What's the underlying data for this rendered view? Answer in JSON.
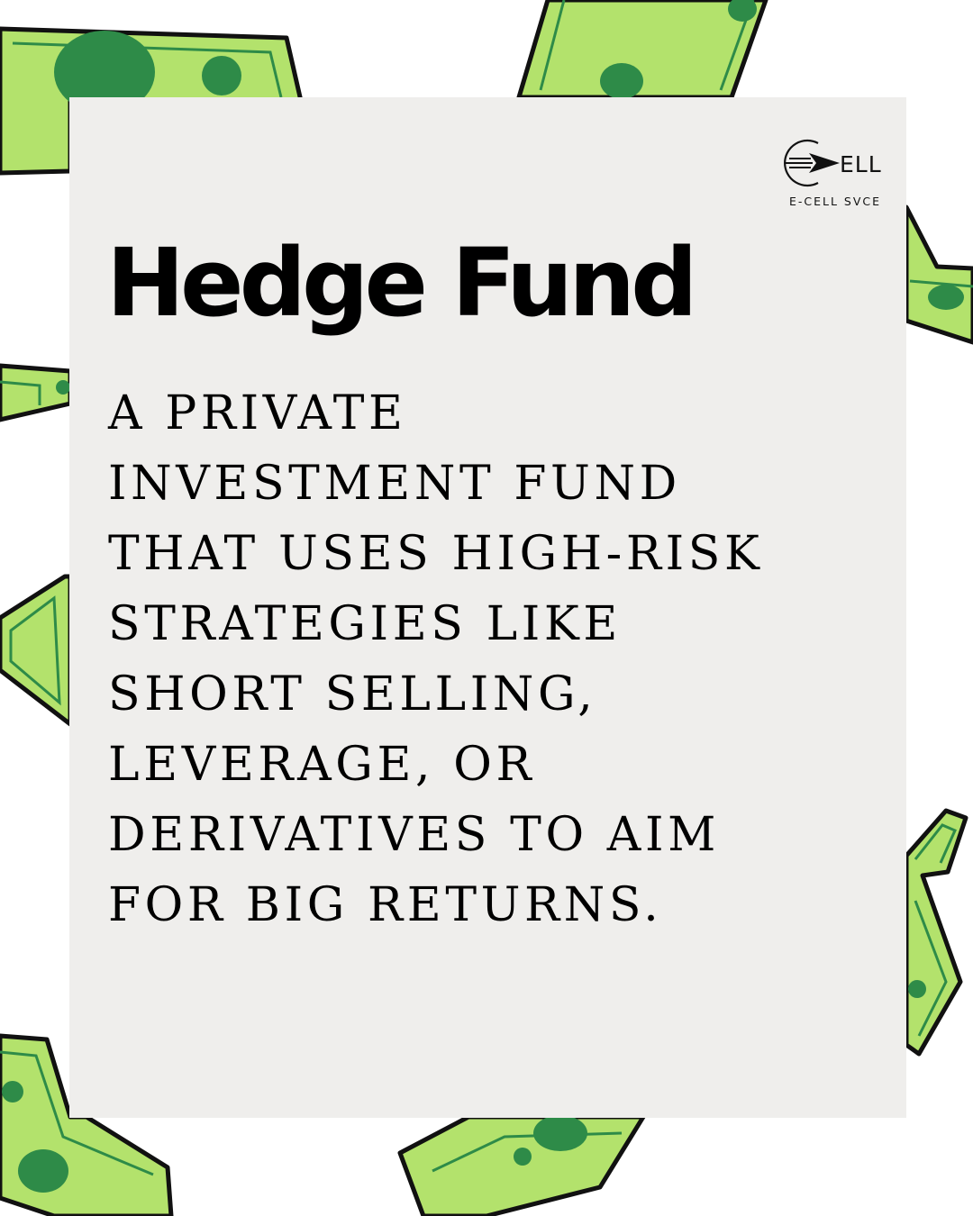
{
  "title": "Hedge Fund",
  "logo": {
    "wordmark": "ELL",
    "caption": "E-CELL SVCE"
  },
  "definition_lines": [
    "A PRIVATE",
    "INVESTMENT FUND",
    "THAT USES HIGH-RISK",
    "STRATEGIES LIKE",
    "SHORT SELLING,",
    "LEVERAGE, OR",
    "DERIVATIVES TO AIM",
    "FOR BIG RETURNS."
  ],
  "colors": {
    "bill_green": "#b3e26c",
    "bill_dark_green": "#2e8b48",
    "card": "#efeeec",
    "text": "#000000"
  },
  "icons": [
    "money-bill-icon",
    "e-cell-logo-icon"
  ]
}
